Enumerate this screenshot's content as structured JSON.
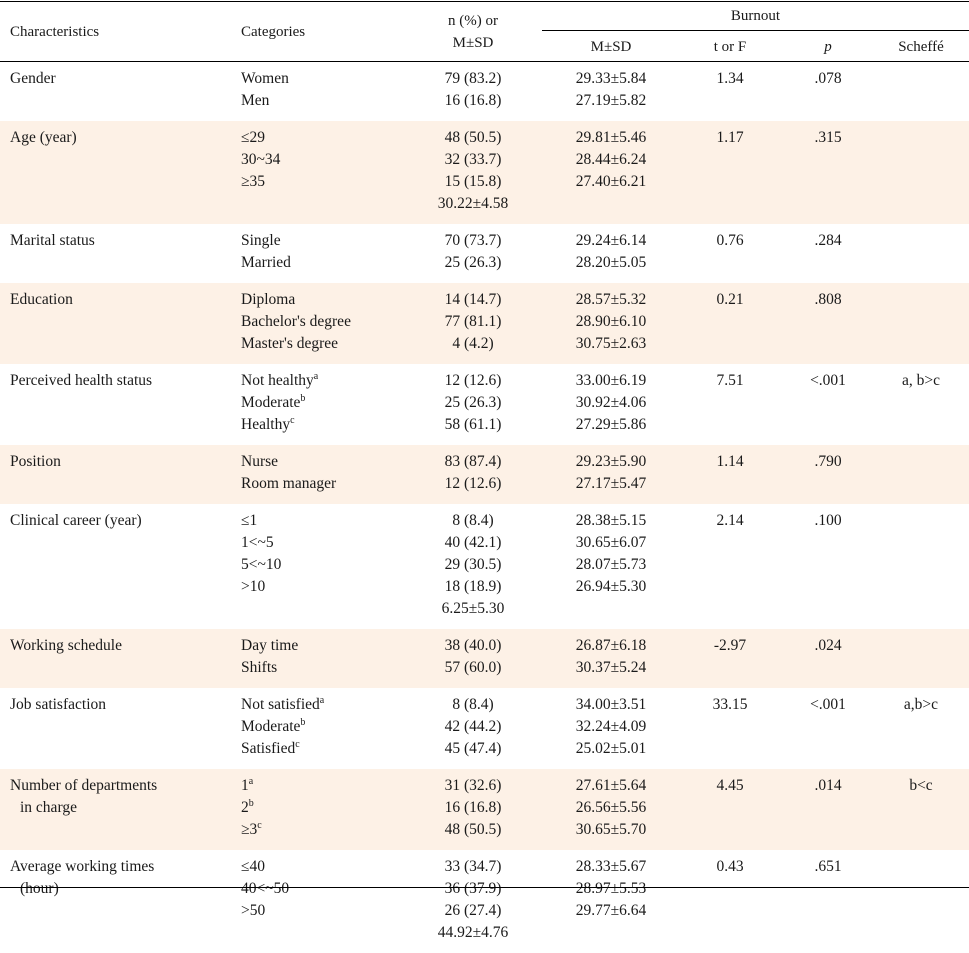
{
  "header": {
    "characteristics": "Characteristics",
    "categories": "Categories",
    "n_line1": "n (%) or",
    "n_line2": "M±SD",
    "burnout": "Burnout",
    "msd": "M±SD",
    "t_or_f": "t or F",
    "p": "p",
    "scheffe": "Scheffé"
  },
  "rows": [
    {
      "characteristic": [
        "Gender"
      ],
      "categories": [
        {
          "text": "Women",
          "sup": ""
        },
        {
          "text": "Men",
          "sup": ""
        }
      ],
      "n": [
        "79 (83.2)",
        "16 (16.8)"
      ],
      "msd": [
        "29.33±5.84",
        "27.19±5.82"
      ],
      "t": "1.34",
      "p": ".078",
      "scheffe": ""
    },
    {
      "characteristic": [
        "Age (year)"
      ],
      "categories": [
        {
          "text": "≤29",
          "sup": ""
        },
        {
          "text": "30~34",
          "sup": ""
        },
        {
          "text": "≥35",
          "sup": ""
        }
      ],
      "n": [
        "48 (50.5)",
        "32 (33.7)",
        "15 (15.8)",
        "30.22±4.58"
      ],
      "msd": [
        "29.81±5.46",
        "28.44±6.24",
        "27.40±6.21"
      ],
      "t": "1.17",
      "p": ".315",
      "scheffe": ""
    },
    {
      "characteristic": [
        "Marital status"
      ],
      "categories": [
        {
          "text": "Single",
          "sup": ""
        },
        {
          "text": "Married",
          "sup": ""
        }
      ],
      "n": [
        "70 (73.7)",
        "25 (26.3)"
      ],
      "msd": [
        "29.24±6.14",
        "28.20±5.05"
      ],
      "t": "0.76",
      "p": ".284",
      "scheffe": ""
    },
    {
      "characteristic": [
        "Education"
      ],
      "categories": [
        {
          "text": "Diploma",
          "sup": ""
        },
        {
          "text": "Bachelor's degree",
          "sup": ""
        },
        {
          "text": "Master's degree",
          "sup": ""
        }
      ],
      "n": [
        "14 (14.7)",
        "77 (81.1)",
        "4 (4.2)"
      ],
      "msd": [
        "28.57±5.32",
        "28.90±6.10",
        "30.75±2.63"
      ],
      "t": "0.21",
      "p": ".808",
      "scheffe": ""
    },
    {
      "characteristic": [
        "Perceived health status"
      ],
      "categories": [
        {
          "text": "Not healthy",
          "sup": "a"
        },
        {
          "text": "Moderate",
          "sup": "b"
        },
        {
          "text": "Healthy",
          "sup": "c"
        }
      ],
      "n": [
        "12 (12.6)",
        "25 (26.3)",
        "58 (61.1)"
      ],
      "msd": [
        "33.00±6.19",
        "30.92±4.06",
        "27.29±5.86"
      ],
      "t": "7.51",
      "p": "<.001",
      "scheffe": "a, b>c"
    },
    {
      "characteristic": [
        "Position"
      ],
      "categories": [
        {
          "text": "Nurse",
          "sup": ""
        },
        {
          "text": "Room manager",
          "sup": ""
        }
      ],
      "n": [
        "83 (87.4)",
        "12 (12.6)"
      ],
      "msd": [
        "29.23±5.90",
        "27.17±5.47"
      ],
      "t": "1.14",
      "p": ".790",
      "scheffe": ""
    },
    {
      "characteristic": [
        "Clinical career (year)"
      ],
      "categories": [
        {
          "text": "≤1",
          "sup": ""
        },
        {
          "text": "1<~5",
          "sup": ""
        },
        {
          "text": "5<~10",
          "sup": ""
        },
        {
          "text": ">10",
          "sup": ""
        }
      ],
      "n": [
        "8 (8.4)",
        "40 (42.1)",
        "29 (30.5)",
        "18 (18.9)",
        "6.25±5.30"
      ],
      "msd": [
        "28.38±5.15",
        "30.65±6.07",
        "28.07±5.73",
        "26.94±5.30"
      ],
      "t": "2.14",
      "p": ".100",
      "scheffe": ""
    },
    {
      "characteristic": [
        "Working schedule"
      ],
      "categories": [
        {
          "text": "Day time",
          "sup": ""
        },
        {
          "text": "Shifts",
          "sup": ""
        }
      ],
      "n": [
        "38 (40.0)",
        "57 (60.0)"
      ],
      "msd": [
        "26.87±6.18",
        "30.37±5.24"
      ],
      "t": "-2.97",
      "p": ".024",
      "scheffe": ""
    },
    {
      "characteristic": [
        "Job satisfaction"
      ],
      "categories": [
        {
          "text": "Not satisfied",
          "sup": "a"
        },
        {
          "text": "Moderate",
          "sup": "b"
        },
        {
          "text": "Satisfied",
          "sup": "c"
        }
      ],
      "n": [
        "8 (8.4)",
        "42 (44.2)",
        "45 (47.4)"
      ],
      "msd": [
        "34.00±3.51",
        "32.24±4.09",
        "25.02±5.01"
      ],
      "t": "33.15",
      "p": "<.001",
      "scheffe": "a,b>c"
    },
    {
      "characteristic": [
        "Number of departments",
        "in charge"
      ],
      "categories": [
        {
          "text": "1",
          "sup": "a"
        },
        {
          "text": "2",
          "sup": "b"
        },
        {
          "text": "≥3",
          "sup": "c"
        }
      ],
      "n": [
        "31 (32.6)",
        "16 (16.8)",
        "48 (50.5)"
      ],
      "msd": [
        "27.61±5.64",
        "26.56±5.56",
        "30.65±5.70"
      ],
      "t": "4.45",
      "p": ".014",
      "scheffe": "b<c"
    },
    {
      "characteristic": [
        "Average working times",
        "(hour)"
      ],
      "categories": [
        {
          "text": "≤40",
          "sup": ""
        },
        {
          "text": "40<~50",
          "sup": ""
        },
        {
          "text": ">50",
          "sup": ""
        }
      ],
      "n": [
        "33 (34.7)",
        "36 (37.9)",
        "26 (27.4)",
        "44.92±4.76"
      ],
      "msd": [
        "28.33±5.67",
        "28.97±5.53",
        "29.77±6.64"
      ],
      "t": "0.43",
      "p": ".651",
      "scheffe": ""
    }
  ],
  "colors": {
    "band_shade": "#fdf1e6",
    "rule": "#000000",
    "text": "#1a1a1a"
  }
}
